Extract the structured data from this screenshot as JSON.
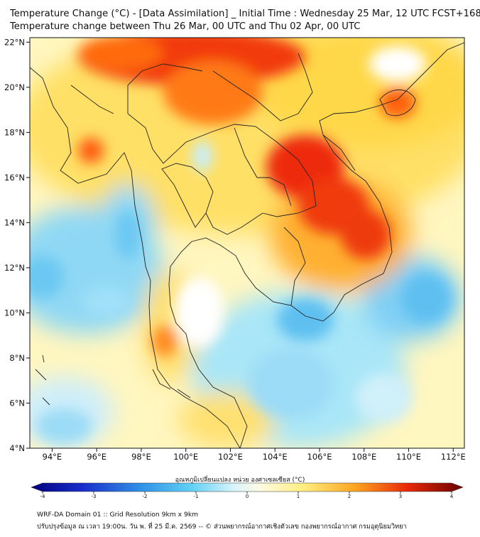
{
  "title_line1": "Temperature Change (°C) - [Data Assimilation] _ Initial Time : Wednesday 25 Mar, 12 UTC FCST+168",
  "title_line2": "Temperature change between Thu 26 Mar, 00 UTC and Thu 02 Apr, 00 UTC",
  "map": {
    "lon_ticks": [
      "94°E",
      "96°E",
      "98°E",
      "100°E",
      "102°E",
      "104°E",
      "106°E",
      "108°E",
      "110°E",
      "112°E"
    ],
    "lat_ticks": [
      "22°N",
      "20°N",
      "18°N",
      "16°N",
      "14°N",
      "12°N",
      "10°N",
      "8°N",
      "6°N",
      "4°N"
    ],
    "lon_range": [
      93.0,
      112.5
    ],
    "lat_range": [
      4.0,
      22.2
    ]
  },
  "colorbar": {
    "title": "อุณหภูมิเปลี่ยนแปลง หน่วย องศาเซลเซียส (°C)",
    "tick_labels": [
      "-4",
      "-3",
      "-2",
      "-1",
      "0",
      "1",
      "2",
      "3",
      "4"
    ],
    "range": [
      -4,
      4
    ],
    "colors": [
      "#00007f",
      "#1a2ecc",
      "#2f6fe6",
      "#33a8f0",
      "#5fd0f5",
      "#a8e8fa",
      "#e0f6fc",
      "#ffffff",
      "#fff9c8",
      "#ffee80",
      "#ffd23a",
      "#ffa520",
      "#ff6a10",
      "#ee2a08",
      "#c40a06",
      "#6a0000"
    ]
  },
  "footer_line1": "WRF-DA Domain 01 :: Grid Resolution 9km x 9km",
  "footer_line2": "ปรับปรุงข้อมูล ณ เวลา 19:00น. วัน พ. ที่ 25 มี.ค. 2569 -- © ส่วนพยากรณ์อากาศเชิงตัวเลข กองพยากรณ์อากาศ กรมอุตุนิยมวิทยา"
}
